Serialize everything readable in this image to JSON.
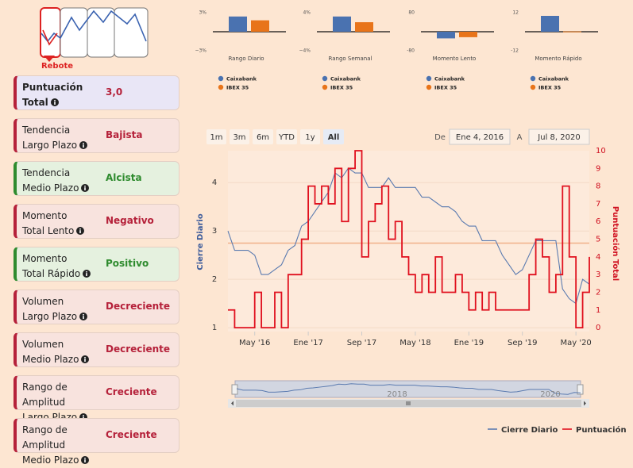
{
  "logo": {
    "label": "Rebote"
  },
  "items": [
    {
      "label": [
        "Puntuación",
        "Total"
      ],
      "value": "3,0",
      "bg": "#e9e6f6",
      "accent": "#b5213a",
      "bold": true
    },
    {
      "label": [
        "Tendencia",
        "Largo Plazo"
      ],
      "value": "Bajista",
      "bg": "#f8e3de",
      "accent": "#b5213a"
    },
    {
      "label": [
        "Tendencia",
        "Medio Plazo"
      ],
      "value": "Alcista",
      "bg": "#e5f1df",
      "accent": "#2e8b2e"
    },
    {
      "label": [
        "Momento",
        "Total Lento"
      ],
      "value": "Negativo",
      "bg": "#f8e3de",
      "accent": "#b5213a"
    },
    {
      "label": [
        "Momento",
        "Total Rápido"
      ],
      "value": "Positivo",
      "bg": "#e5f1df",
      "accent": "#2e8b2e"
    },
    {
      "label": [
        "Volumen",
        "Largo Plazo"
      ],
      "value": "Decreciente",
      "bg": "#f8e3de",
      "accent": "#b5213a"
    },
    {
      "label": [
        "Volumen",
        "Medio Plazo"
      ],
      "value": "Decreciente",
      "bg": "#f8e3de",
      "accent": "#b5213a"
    },
    {
      "label": [
        "Rango de Amplitud",
        "Largo Plazo"
      ],
      "value": "Creciente",
      "bg": "#f8e3de",
      "accent": "#b5213a"
    },
    {
      "label": [
        "Rango de Amplitud",
        "Medio Plazo"
      ],
      "value": "Creciente",
      "bg": "#f8e3de",
      "accent": "#b5213a"
    }
  ],
  "mini_charts": [
    {
      "type": "bar",
      "title": "Rango Diario",
      "ylim": [
        -3,
        3
      ],
      "yticks": [
        {
          "value": 3,
          "label": "3%"
        },
        {
          "value": -3,
          "label": "−3%"
        }
      ],
      "series": [
        {
          "name": "Caixabank",
          "color": "#4a72b0",
          "values": [
            2.4
          ]
        },
        {
          "name": "IBEX 35",
          "color": "#e8741a",
          "values": [
            1.8
          ]
        }
      ]
    },
    {
      "type": "bar",
      "title": "Rango Semanal",
      "ylim": [
        -4,
        4
      ],
      "yticks": [
        {
          "value": 4,
          "label": "4%"
        },
        {
          "value": -4,
          "label": "−4%"
        }
      ],
      "series": [
        {
          "name": "Caixabank",
          "color": "#4a72b0",
          "values": [
            3.2
          ]
        },
        {
          "name": "IBEX 35",
          "color": "#e8741a",
          "values": [
            2.0
          ]
        }
      ]
    },
    {
      "type": "bar",
      "title": "Momento Lento",
      "ylim": [
        -80,
        80
      ],
      "yticks": [
        80,
        -80
      ],
      "series": [
        {
          "name": "Caixabank",
          "color": "#4a72b0",
          "values": [
            -28
          ]
        },
        {
          "name": "IBEX 35",
          "color": "#e8741a",
          "values": [
            -23
          ]
        }
      ]
    },
    {
      "type": "bar",
      "title": "Momento Rápido",
      "ylim": [
        -12,
        12
      ],
      "yticks": [
        12,
        -12
      ],
      "series": [
        {
          "name": "Caixabank",
          "color": "#4a72b0",
          "values": [
            10
          ]
        },
        {
          "name": "IBEX 35",
          "color": "#e8741a",
          "values": [
            0.2
          ]
        }
      ]
    }
  ],
  "range_buttons": {
    "labels": [
      "1m",
      "3m",
      "6m",
      "YTD",
      "1y",
      "All"
    ],
    "selected": 5
  },
  "date_range": {
    "from_label": "De",
    "from": "Ene 4, 2016",
    "to_label": "A",
    "to": "Jul 8, 2020"
  },
  "chart_data": {
    "type": "line",
    "y_label": "Cierre Diario",
    "y2_label": "Puntuación Total",
    "x": [
      "2016-01",
      "2016-02",
      "2016-03",
      "2016-04",
      "2016-05",
      "2016-06",
      "2016-07",
      "2016-08",
      "2016-09",
      "2016-10",
      "2016-11",
      "2016-12",
      "2017-01",
      "2017-02",
      "2017-03",
      "2017-04",
      "2017-05",
      "2017-06",
      "2017-07",
      "2017-08",
      "2017-09",
      "2017-10",
      "2017-11",
      "2017-12",
      "2018-01",
      "2018-02",
      "2018-03",
      "2018-04",
      "2018-05",
      "2018-06",
      "2018-07",
      "2018-08",
      "2018-09",
      "2018-10",
      "2018-11",
      "2018-12",
      "2019-01",
      "2019-02",
      "2019-03",
      "2019-04",
      "2019-05",
      "2019-06",
      "2019-07",
      "2019-08",
      "2019-09",
      "2019-10",
      "2019-11",
      "2019-12",
      "2020-01",
      "2020-02",
      "2020-03",
      "2020-04",
      "2020-05",
      "2020-06",
      "2020-07"
    ],
    "xlim": [
      "2016-01",
      "2020-07"
    ],
    "xticks": [
      {
        "value": "2016-05",
        "label": "May '16"
      },
      {
        "value": "2017-01",
        "label": "Ene '17"
      },
      {
        "value": "2017-09",
        "label": "Sep '17"
      },
      {
        "value": "2018-05",
        "label": "May '18"
      },
      {
        "value": "2019-01",
        "label": "Ene '19"
      },
      {
        "value": "2019-09",
        "label": "Sep '19"
      },
      {
        "value": "2020-05",
        "label": "May '20"
      }
    ],
    "ylim": [
      0.92,
      4.66
    ],
    "yticks": [
      1,
      2,
      3,
      4
    ],
    "y2lim": [
      -0.22,
      10
    ],
    "y2ticks": [
      0,
      1,
      2,
      3,
      4,
      5,
      6,
      7,
      8,
      9,
      10
    ],
    "plot_line": 2.75,
    "grid": true,
    "series": [
      {
        "name": "Cierre Diario",
        "color": "#5b7bb0",
        "step": false,
        "values": [
          3.0,
          2.6,
          2.6,
          2.6,
          2.5,
          2.1,
          2.1,
          2.2,
          2.3,
          2.6,
          2.7,
          3.1,
          3.2,
          3.4,
          3.6,
          3.8,
          4.2,
          4.1,
          4.3,
          4.2,
          4.2,
          3.9,
          3.9,
          3.9,
          4.1,
          3.9,
          3.9,
          3.9,
          3.9,
          3.7,
          3.7,
          3.6,
          3.5,
          3.5,
          3.4,
          3.2,
          3.1,
          3.1,
          2.8,
          2.8,
          2.8,
          2.5,
          2.3,
          2.1,
          2.2,
          2.5,
          2.8,
          2.8,
          2.8,
          2.8,
          1.8,
          1.6,
          1.5,
          2.0,
          1.9
        ]
      },
      {
        "name": "Puntuación",
        "color": "#e0101e",
        "axis": "y2",
        "step": true,
        "values": [
          1,
          0,
          0,
          0,
          2,
          0,
          0,
          2,
          0,
          3,
          3,
          5,
          8,
          7,
          8,
          7,
          9,
          6,
          9,
          10,
          4,
          6,
          7,
          8,
          5,
          6,
          4,
          3,
          2,
          3,
          2,
          4,
          2,
          2,
          3,
          2,
          1,
          2,
          1,
          2,
          1,
          1,
          1,
          1,
          1,
          3,
          5,
          4,
          2,
          3,
          8,
          4,
          0,
          2,
          4
        ]
      }
    ],
    "navigator_labels": [
      "2018",
      "2020"
    ]
  }
}
